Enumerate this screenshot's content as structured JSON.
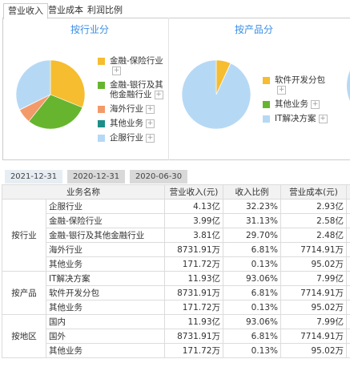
{
  "tabs": [
    "营业收入",
    "营业成本",
    "利润比例"
  ],
  "chart_data": [
    {
      "type": "pie",
      "title": "按行业分",
      "categories": [
        "金融-保险行业",
        "金融-银行及其他金融行业",
        "海外行业",
        "其他业务",
        "企服行业"
      ],
      "values": [
        31.13,
        29.7,
        6.81,
        0.13,
        32.23
      ],
      "colors": [
        "#f5bd2f",
        "#67b52e",
        "#f39a6a",
        "#1b8f88",
        "#b5d9f5"
      ]
    },
    {
      "type": "pie",
      "title": "按产品分",
      "categories": [
        "软件开发分包",
        "其他业务",
        "IT解决方案"
      ],
      "values": [
        6.81,
        0.13,
        93.06
      ],
      "colors": [
        "#f5bd2f",
        "#67b52e",
        "#b5d9f5"
      ]
    }
  ],
  "periods": [
    "2021-12-31",
    "2020-12-31",
    "2020-06-30"
  ],
  "table": {
    "headers": [
      "业务名称",
      "营业收入(元)",
      "收入比例",
      "营业成本(元)"
    ],
    "groups": [
      {
        "label": "按行业",
        "rows": [
          [
            "企服行业",
            "4.13亿",
            "32.23%",
            "2.93亿"
          ],
          [
            "金融-保险行业",
            "3.99亿",
            "31.13%",
            "2.58亿"
          ],
          [
            "金融-银行及其他金融行业",
            "3.81亿",
            "29.70%",
            "2.48亿"
          ],
          [
            "海外行业",
            "8731.91万",
            "6.81%",
            "7714.91万"
          ],
          [
            "其他业务",
            "171.72万",
            "0.13%",
            "95.02万"
          ]
        ]
      },
      {
        "label": "按产品",
        "rows": [
          [
            "IT解决方案",
            "11.93亿",
            "93.06%",
            "7.99亿"
          ],
          [
            "软件开发分包",
            "8731.91万",
            "6.81%",
            "7714.91万"
          ],
          [
            "其他业务",
            "171.72万",
            "0.13%",
            "95.02万"
          ]
        ]
      },
      {
        "label": "按地区",
        "rows": [
          [
            "国内",
            "11.93亿",
            "93.06%",
            "7.99亿"
          ],
          [
            "国外",
            "8731.91万",
            "6.81%",
            "7714.91万"
          ],
          [
            "其他业务",
            "171.72万",
            "0.13%",
            "95.02万"
          ]
        ]
      }
    ]
  }
}
